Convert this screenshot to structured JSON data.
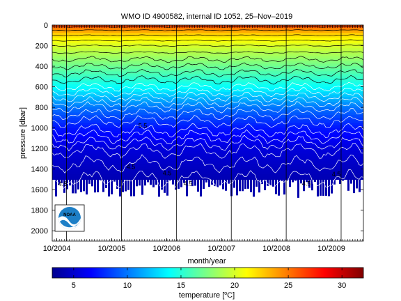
{
  "chart_data": {
    "type": "heatmap",
    "title": "WMO ID 4900582, internal ID 1052, 25–Nov–2019",
    "xlabel": "month/year",
    "ylabel": "pressure [dbar]",
    "x_ticks": [
      "10/2004",
      "10/2005",
      "10/2006",
      "10/2007",
      "10/2008",
      "10/2009"
    ],
    "y_ticks": [
      "0",
      "200",
      "400",
      "600",
      "800",
      "1000",
      "1200",
      "1400",
      "1600",
      "1800",
      "2000"
    ],
    "y_tick_values": [
      0,
      200,
      400,
      600,
      800,
      1000,
      1200,
      1400,
      1600,
      1800,
      2000
    ],
    "xlim": [
      "2004-09",
      "2010-05"
    ],
    "ylim": [
      2100,
      0
    ],
    "y_reversed": true,
    "colorbar": {
      "label_prefix": "temperature [",
      "label_sup": "o",
      "label_suffix": "C]",
      "range": [
        3,
        32
      ],
      "ticks": [
        "5",
        "10",
        "15",
        "20",
        "25",
        "30"
      ],
      "tick_values": [
        5,
        10,
        15,
        20,
        25,
        30
      ],
      "colormap": "jet"
    },
    "contour_labels": [
      "4.5",
      "5.5",
      "4.5",
      "4.5",
      "4.5",
      "4.5",
      "4.5"
    ],
    "depth_profile": [
      {
        "p": 0,
        "t": 27
      },
      {
        "p": 50,
        "t": 24
      },
      {
        "p": 100,
        "t": 22
      },
      {
        "p": 200,
        "t": 20
      },
      {
        "p": 300,
        "t": 18.5
      },
      {
        "p": 400,
        "t": 17
      },
      {
        "p": 500,
        "t": 15.5
      },
      {
        "p": 600,
        "t": 14
      },
      {
        "p": 700,
        "t": 12
      },
      {
        "p": 800,
        "t": 10
      },
      {
        "p": 900,
        "t": 8.5
      },
      {
        "p": 1000,
        "t": 7.2
      },
      {
        "p": 1200,
        "t": 5.6
      },
      {
        "p": 1400,
        "t": 4.8
      },
      {
        "p": 1600,
        "t": 4.2
      }
    ]
  },
  "logo": {
    "text": "NOAA"
  }
}
